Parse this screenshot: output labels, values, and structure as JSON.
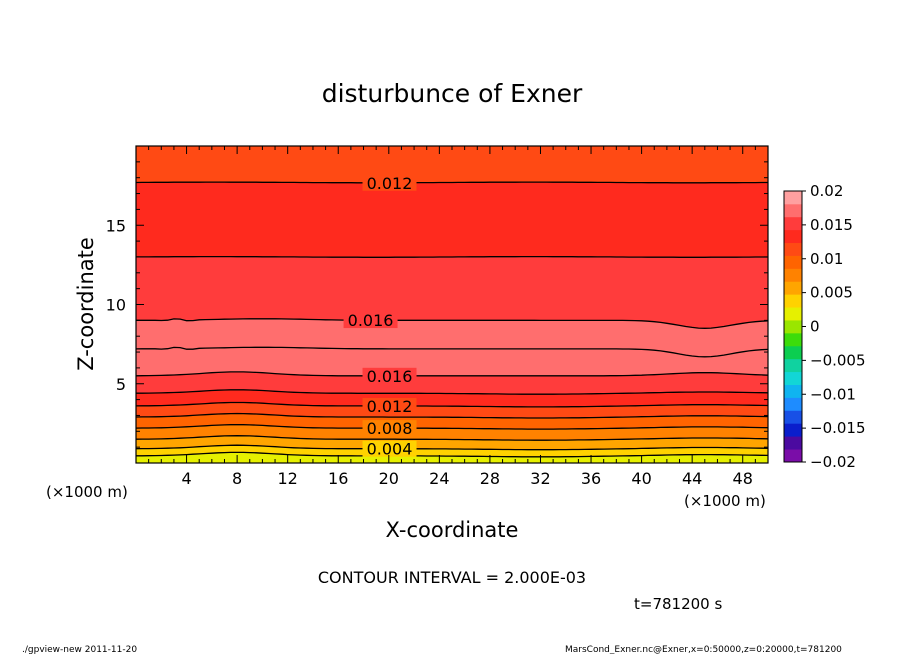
{
  "chart_data": {
    "type": "heatmap",
    "title": "disturbunce of Exner",
    "xlabel": "X-coordinate",
    "ylabel": "Z-coordinate",
    "x_unit": "(×1000 m)",
    "z_unit": "(×1000 m)",
    "xlim": [
      0,
      50
    ],
    "ylim": [
      0,
      20
    ],
    "x_ticks": [
      4,
      8,
      12,
      16,
      20,
      24,
      28,
      32,
      36,
      40,
      44,
      48
    ],
    "y_ticks": [
      5,
      10,
      15
    ],
    "contour_interval_text": "CONTOUR INTERVAL = 2.000E-03",
    "contour_interval": 0.002,
    "time_text": "t=781200 s",
    "colorbar": {
      "range": [
        -0.02,
        0.02
      ],
      "tick_values": [
        0.02,
        0.015,
        0.01,
        0.005,
        0,
        -0.005,
        -0.01,
        -0.015,
        -0.02
      ],
      "tick_labels": [
        "0.02",
        "0.015",
        "0.01",
        "0.005",
        "0",
        "−0.005",
        "−0.01",
        "−0.015",
        "−0.02"
      ],
      "colors": [
        "#7a0da8",
        "#4b0aa0",
        "#0a1ecc",
        "#1850e6",
        "#1e8cff",
        "#10b4f0",
        "#12d6d6",
        "#10d2a0",
        "#0cce50",
        "#3cdc0a",
        "#9ae600",
        "#e6f000",
        "#ffd200",
        "#ffa500",
        "#ff8200",
        "#ff6400",
        "#ff4a14",
        "#ff2a1e",
        "#ff3c3c",
        "#ff6e6e",
        "#ffa0a0"
      ]
    },
    "levels_z_at_x": [
      {
        "level": 0.0,
        "z": 0.0
      },
      {
        "level": 0.002,
        "z": 0.45
      },
      {
        "level": 0.004,
        "z": 0.9
      },
      {
        "level": 0.006,
        "z": 1.5
      },
      {
        "level": 0.008,
        "z": 2.2
      },
      {
        "level": 0.01,
        "z": 2.9
      },
      {
        "level": 0.012,
        "z": 3.6
      },
      {
        "level": 0.014,
        "z": 4.4
      },
      {
        "level": 0.016,
        "z": 5.5
      },
      {
        "level": 0.018,
        "z": 7.2
      },
      {
        "level": 0.016,
        "z": 9.0
      },
      {
        "level": 0.014,
        "z": 13.0
      },
      {
        "level": 0.012,
        "z": 17.7
      }
    ],
    "contour_labels": [
      {
        "text": "0.012",
        "x": 18,
        "z": 17.7
      },
      {
        "text": "0.016",
        "x": 16.5,
        "z": 9.0
      },
      {
        "text": "0.016",
        "x": 18,
        "z": 5.5
      },
      {
        "text": "0.012",
        "x": 18,
        "z": 3.6
      },
      {
        "text": "0.008",
        "x": 18,
        "z": 2.2
      },
      {
        "text": "0.004",
        "x": 18,
        "z": 0.9
      }
    ]
  },
  "footer": {
    "left": "./gpview-new   2011-11-20",
    "right": "MarsCond_Exner.nc@Exner,x=0:50000,z=0:20000,t=781200"
  }
}
